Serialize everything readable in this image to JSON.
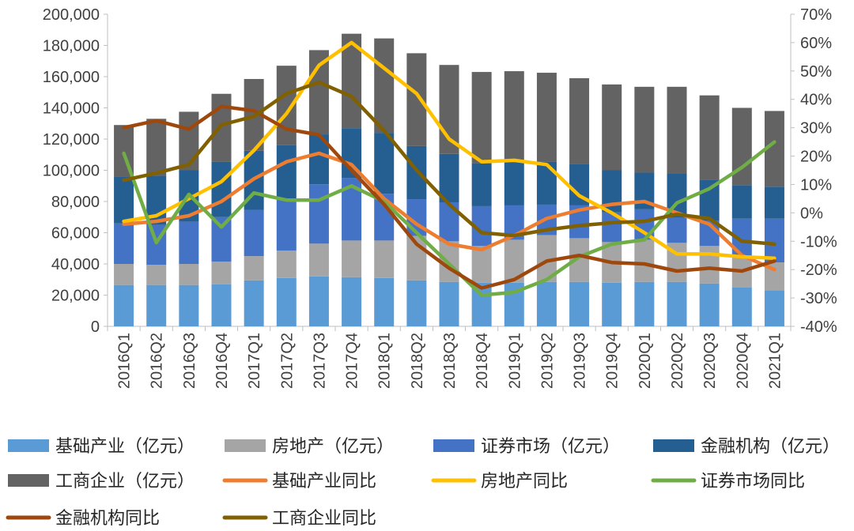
{
  "chart_data": {
    "type": "bar+line",
    "stacked_bars": true,
    "categories": [
      "2016Q1",
      "2016Q2",
      "2016Q3",
      "2016Q4",
      "2017Q1",
      "2017Q2",
      "2017Q3",
      "2017Q4",
      "2018Q1",
      "2018Q2",
      "2018Q3",
      "2018Q4",
      "2019Q1",
      "2019Q2",
      "2019Q3",
      "2019Q4",
      "2020Q1",
      "2020Q2",
      "2020Q3",
      "2020Q4",
      "2021Q1"
    ],
    "ylim_left": [
      0,
      200000
    ],
    "yticks_left": [
      "0",
      "20,000",
      "40,000",
      "60,000",
      "80,000",
      "100,000",
      "120,000",
      "140,000",
      "160,000",
      "180,000",
      "200,000"
    ],
    "ylim_right": [
      -40,
      70
    ],
    "yticks_right": [
      "-40%",
      "-30%",
      "-20%",
      "-10%",
      "0%",
      "10%",
      "20%",
      "30%",
      "40%",
      "50%",
      "60%",
      "70%"
    ],
    "bar_series": [
      {
        "name": "基础产业（亿元）",
        "color": "#5B9BD5",
        "values": [
          26500,
          26500,
          26500,
          27000,
          29500,
          31000,
          32000,
          31500,
          31000,
          29500,
          28500,
          28000,
          28000,
          28500,
          28500,
          28000,
          28500,
          28500,
          27500,
          25000,
          23000
        ]
      },
      {
        "name": "房地产（亿元）",
        "color": "#A5A5A5",
        "values": [
          13500,
          13000,
          13500,
          14500,
          15500,
          17500,
          21000,
          23500,
          24000,
          28500,
          26000,
          23500,
          27500,
          30000,
          28000,
          26000,
          27000,
          25000,
          24000,
          19000,
          18000
        ]
      },
      {
        "name": "证券市场（亿元）",
        "color": "#4472C4",
        "values": [
          26000,
          25500,
          27000,
          28500,
          29500,
          33000,
          38000,
          40000,
          30000,
          23500,
          25000,
          25500,
          22000,
          19500,
          21000,
          19000,
          19500,
          16000,
          16000,
          25000,
          28000
        ]
      },
      {
        "name": "金融机构（亿元）",
        "color": "#255E91",
        "values": [
          30000,
          31500,
          33000,
          35500,
          38000,
          34500,
          32000,
          32000,
          39000,
          34000,
          31000,
          27500,
          28500,
          27500,
          26500,
          27000,
          23500,
          28500,
          26500,
          21500,
          20500
        ]
      },
      {
        "name": "工商企业（亿元）",
        "color": "#636363",
        "values": [
          33000,
          36500,
          37500,
          43500,
          46000,
          51000,
          54000,
          60500,
          60500,
          59500,
          57000,
          58500,
          57500,
          57000,
          55000,
          55000,
          55000,
          55500,
          54000,
          49500,
          48500
        ]
      }
    ],
    "line_series": [
      {
        "name": "基础产业同比",
        "color": "#ED7D31",
        "values": [
          -4,
          -3,
          -1,
          4,
          12,
          18,
          21,
          17,
          5,
          -4,
          -11,
          -13,
          -8,
          -2,
          1,
          3,
          4,
          0,
          -4,
          -15,
          -20
        ]
      },
      {
        "name": "房地产同比",
        "color": "#FFC000",
        "values": [
          -3,
          -1,
          5,
          11,
          22,
          35,
          52,
          60,
          51,
          42,
          26,
          18,
          18.5,
          17,
          6,
          0,
          -7,
          -14.5,
          -14.5,
          -15.5,
          -16
        ]
      },
      {
        "name": "证券市场同比",
        "color": "#70AD47",
        "values": [
          21,
          -10.5,
          6.5,
          -5,
          7,
          4.5,
          4.5,
          9.5,
          4,
          -7,
          -18,
          -29,
          -28,
          -23.5,
          -15.5,
          -11,
          -9.5,
          3.5,
          8.5,
          16,
          25
        ]
      },
      {
        "name": "金融机构同比",
        "color": "#9E480E",
        "values": [
          30,
          32.5,
          29.5,
          37.5,
          36,
          29.5,
          27.5,
          15,
          3,
          -11,
          -19.5,
          -26.5,
          -23.5,
          -17,
          -15,
          -17.5,
          -18,
          -20.5,
          -19.5,
          -20.5,
          -17
        ]
      },
      {
        "name": "工商企业同比",
        "color": "#806000",
        "values": [
          11.5,
          14,
          17,
          31,
          34,
          42,
          46,
          41,
          29,
          15,
          3,
          -7,
          -8,
          -6,
          -4.5,
          -3.5,
          -3,
          -0.5,
          -2,
          -10,
          -11
        ]
      }
    ],
    "title": "",
    "xlabel": "",
    "ylabel_left": "",
    "ylabel_right": "",
    "legend_position": "bottom"
  }
}
